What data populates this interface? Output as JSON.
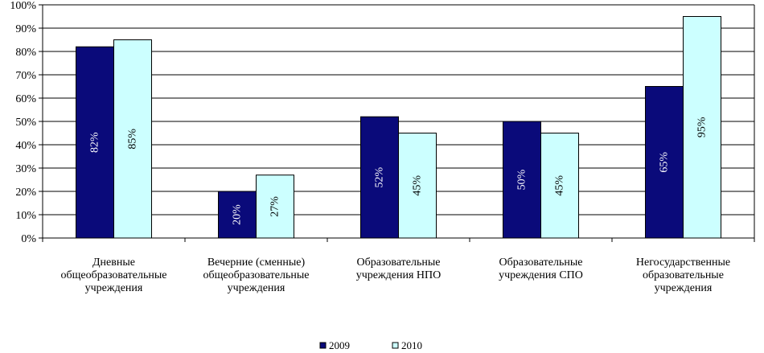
{
  "chart_data": {
    "type": "bar",
    "categories": [
      "Дневные общеобразовательные учреждения",
      "Вечерние (сменные) общеобразовательные учреждения",
      "Образовательные учреждения НПО",
      "Образовательные учреждения СПО",
      "Негосударственные образовательные учреждения"
    ],
    "category_lines": [
      [
        "Дневные",
        "общеобразовательные",
        "учреждения"
      ],
      [
        "Вечерние (сменные)",
        "общеобразовательные",
        "учреждения"
      ],
      [
        "Образовательные",
        "учреждения НПО"
      ],
      [
        "Образовательные",
        "учреждения СПО"
      ],
      [
        "Негосударственные",
        "образовательные",
        "учреждения"
      ]
    ],
    "series": [
      {
        "name": "2009",
        "values": [
          82,
          20,
          52,
          50,
          65
        ],
        "labels": [
          "82%",
          "20%",
          "52%",
          "50%",
          "65%"
        ],
        "color": "#0a0a7a",
        "label_color": "#ffffff"
      },
      {
        "name": "2010",
        "values": [
          85,
          27,
          45,
          45,
          95
        ],
        "labels": [
          "85%",
          "27%",
          "45%",
          "45%",
          "95%"
        ],
        "color": "#ccffff",
        "label_color": "#000000"
      }
    ],
    "ylim": [
      0,
      100
    ],
    "yticks": [
      "0%",
      "10%",
      "20%",
      "30%",
      "40%",
      "50%",
      "60%",
      "70%",
      "80%",
      "90%",
      "100%"
    ],
    "grid": true,
    "legend_position": "bottom",
    "title": "",
    "xlabel": "",
    "ylabel": ""
  }
}
